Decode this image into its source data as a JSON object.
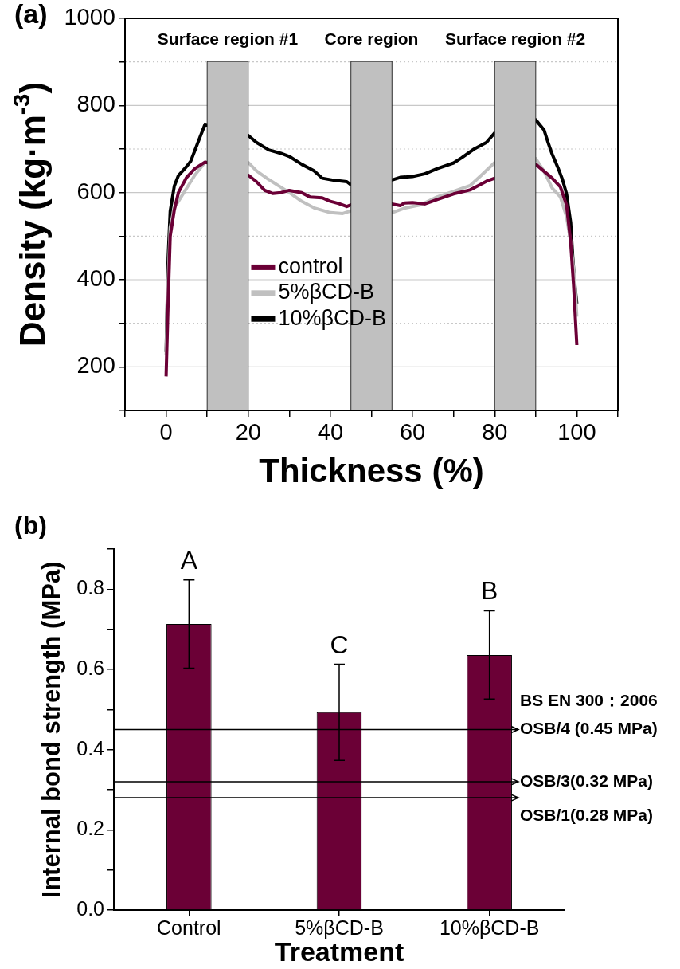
{
  "chart_data": [
    {
      "type": "line",
      "xlabel": "Thickness (%)",
      "ylabel": "Density (kg·m$^{-3}$)",
      "xlim": [
        -10,
        110
      ],
      "ylim": [
        100,
        1000
      ],
      "xticks": [
        {
          "value": -10,
          "label": null
        },
        0,
        {
          "value": 10,
          "label": null
        },
        20,
        {
          "value": 30,
          "label": null
        },
        40,
        {
          "value": 50,
          "label": null
        },
        60,
        {
          "value": 70,
          "label": null
        },
        80,
        {
          "value": 90,
          "label": null
        },
        100,
        {
          "value": 110,
          "label": null
        }
      ],
      "yticks": [
        {
          "value": 100,
          "label": null
        },
        200,
        {
          "value": 300,
          "label": null
        },
        400,
        {
          "value": 500,
          "label": null
        },
        600,
        {
          "value": 700,
          "label": null
        },
        800,
        {
          "value": 900,
          "label": null
        },
        1000
      ],
      "grid": "y",
      "legend": "center",
      "marker": "none",
      "line_style": "solid",
      "series": [
        {
          "name": "control",
          "color": "#6b0036",
          "x": [
            0,
            0.5,
            1,
            2,
            3,
            5,
            7,
            9.5,
            20,
            22,
            24,
            26,
            28,
            30,
            33,
            35,
            38,
            40,
            42,
            44,
            45,
            55,
            57,
            58,
            60,
            63,
            66,
            70,
            74,
            76,
            78,
            80,
            90,
            92,
            94,
            96,
            97.5,
            98.5,
            99.2,
            100
          ],
          "values": [
            178,
            350,
            500,
            560,
            600,
            635,
            655,
            670,
            640,
            625,
            605,
            598,
            600,
            605,
            600,
            590,
            588,
            580,
            575,
            568,
            572,
            574,
            570,
            576,
            577,
            574,
            584,
            597,
            606,
            616,
            626,
            633,
            665,
            649,
            633,
            613,
            571,
            486,
            388,
            250
          ]
        },
        {
          "name": "5%βCD-B",
          "color": "#c0c0c0",
          "x": [
            0,
            0.5,
            1,
            2,
            3,
            5,
            7,
            9.5,
            20,
            22,
            25,
            28,
            30,
            33,
            36,
            40,
            43,
            45,
            55,
            58,
            62,
            66,
            70,
            74,
            77,
            80,
            90,
            92,
            94,
            96,
            97.5,
            98.5,
            99.5,
            100
          ],
          "values": [
            227,
            400,
            520,
            565,
            580,
            610,
            640,
            670,
            669,
            650,
            630,
            612,
            600,
            580,
            565,
            554,
            552,
            558,
            554,
            564,
            572,
            590,
            603,
            616,
            642,
            669,
            678,
            649,
            610,
            590,
            544,
            486,
            400,
            315
          ]
        },
        {
          "name": "10%βCD-B",
          "color": "#000000",
          "x": [
            0,
            0.5,
            1,
            2,
            3,
            5,
            6,
            8,
            9.5,
            20,
            22,
            25,
            28,
            30,
            33,
            36,
            38,
            41,
            44,
            45,
            55,
            57,
            60,
            63,
            66,
            70,
            72,
            75,
            78,
            80,
            90,
            92,
            93,
            94,
            95.5,
            96.5,
            97.5,
            98.5,
            99,
            99.5,
            100
          ],
          "values": [
            234,
            450,
            557,
            615,
            639,
            660,
            672,
            721,
            757,
            731,
            715,
            698,
            690,
            683,
            665,
            650,
            633,
            628,
            625,
            618,
            629,
            635,
            637,
            643,
            655,
            668,
            680,
            700,
            715,
            737,
            767,
            744,
            715,
            688,
            655,
            630,
            597,
            531,
            453,
            390,
            345
          ]
        }
      ],
      "bands": [
        {
          "axis": "x",
          "from": 10,
          "to": 20,
          "label": "Surface region #1",
          "color": "#c0c0c0"
        },
        {
          "axis": "x",
          "from": 45,
          "to": 55,
          "label": "Core region",
          "color": "#c0c0c0"
        },
        {
          "axis": "x",
          "from": 80,
          "to": 90,
          "label": "Surface region #2",
          "color": "#c0c0c0"
        }
      ],
      "annotations": [
        "(a)"
      ]
    },
    {
      "type": "bar",
      "xlabel": "Treatment",
      "ylabel": "Internal bond strength (MPa)",
      "categories": [
        "Control",
        "5%βCD-B",
        "10%βCD-B"
      ],
      "values": [
        0.713,
        0.493,
        0.636
      ],
      "errors": [
        0.11,
        0.12,
        0.11
      ],
      "color": "#6b0036",
      "ylim": [
        0,
        0.9
      ],
      "yticks": [
        {
          "value": 0,
          "label": "0.0"
        },
        {
          "value": 0.1,
          "label": null
        },
        {
          "value": 0.2,
          "label": "0.2"
        },
        {
          "value": 0.3,
          "label": null
        },
        {
          "value": 0.4,
          "label": "0.4"
        },
        {
          "value": 0.5,
          "label": null
        },
        {
          "value": 0.6,
          "label": "0.6"
        },
        {
          "value": 0.7,
          "label": null
        },
        {
          "value": 0.8,
          "label": "0.8"
        },
        {
          "value": 0.9,
          "label": null
        }
      ],
      "ref_lines": [
        {
          "axis": "y",
          "value": 0.45,
          "label": "OSB/4 (0.45 MPa)",
          "color": "#000000"
        },
        {
          "axis": "y",
          "value": 0.32,
          "label": "OSB/3(0.32 MPa)",
          "color": "#000000"
        },
        {
          "axis": "y",
          "value": 0.28,
          "label": "OSB/1(0.28 MPa)",
          "color": "#000000"
        }
      ],
      "annotations": [
        "(b)",
        "BS EN 300：2006",
        {
          "text": "A",
          "x": "Control",
          "y": 0.824
        },
        {
          "text": "C",
          "x": "5%βCD-B",
          "y": 0.613
        },
        {
          "text": "B",
          "x": "10%βCD-B",
          "y": 0.747
        }
      ]
    }
  ]
}
